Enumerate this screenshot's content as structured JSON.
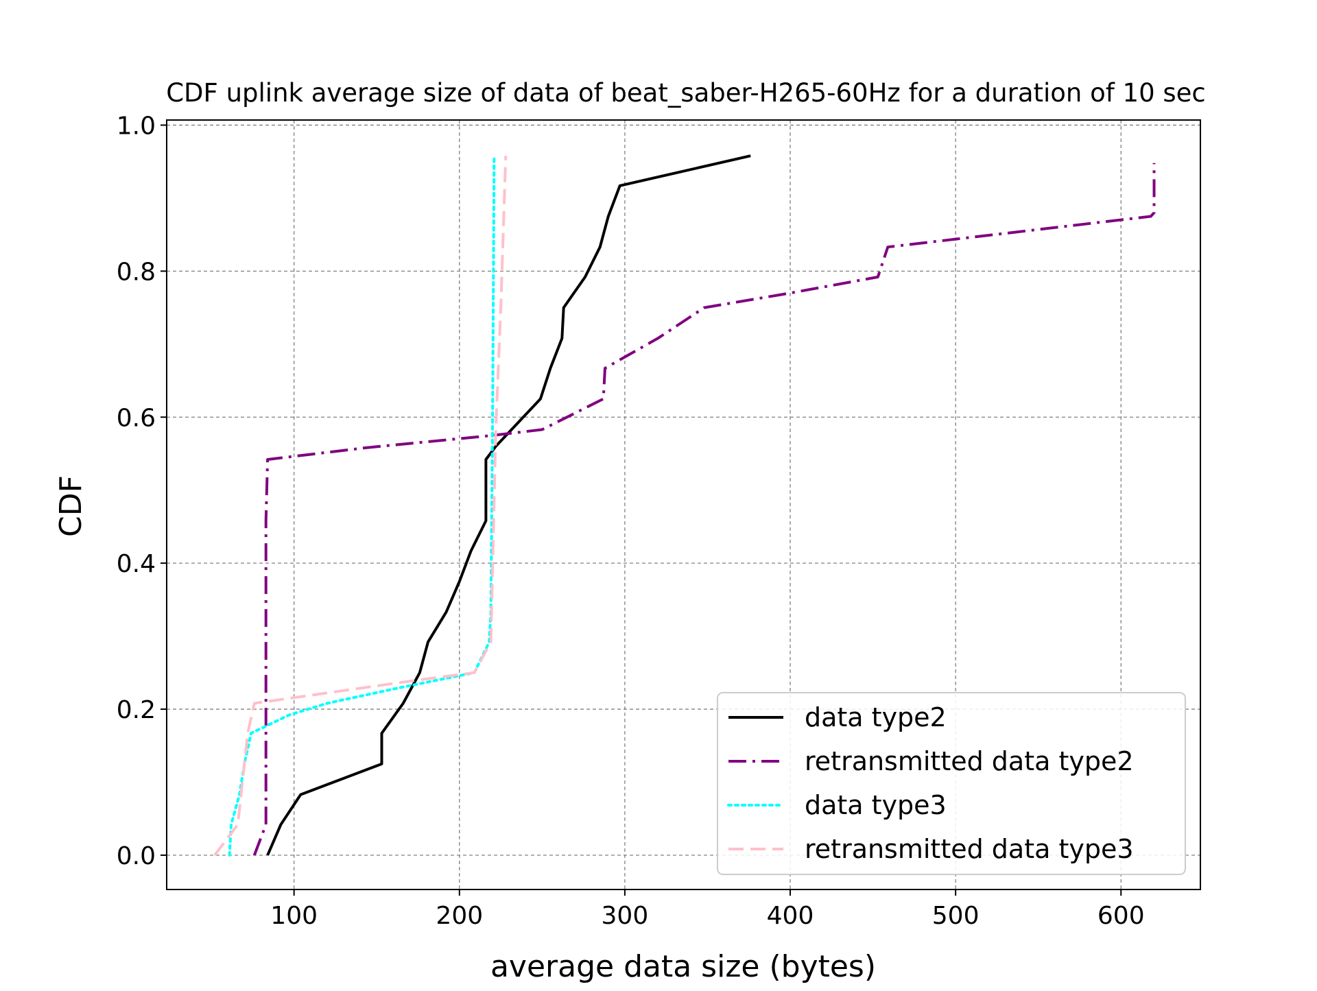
{
  "chart_data": {
    "type": "line",
    "title": "CDF uplink average size of data of beat_saber-H265-60Hz for a duration of 10 sec",
    "xlabel": "average data size (bytes)",
    "ylabel": "CDF",
    "xlim": [
      23,
      648
    ],
    "ylim": [
      -0.047,
      1.007
    ],
    "x_ticks": [
      100,
      200,
      300,
      400,
      500,
      600
    ],
    "y_ticks": [
      0.0,
      0.2,
      0.4,
      0.6,
      0.8,
      1.0
    ],
    "x_tick_labels": [
      "100",
      "200",
      "300",
      "400",
      "500",
      "600"
    ],
    "y_tick_labels": [
      "0.0",
      "0.2",
      "0.4",
      "0.6",
      "0.8",
      "1.0"
    ],
    "grid": true,
    "legend_position": "lower-right",
    "series": [
      {
        "name": "data type2",
        "color": "#000000",
        "style": "solid",
        "points": [
          [
            84,
            0.0
          ],
          [
            92,
            0.042
          ],
          [
            104,
            0.083
          ],
          [
            153,
            0.125
          ],
          [
            153,
            0.167
          ],
          [
            166,
            0.208
          ],
          [
            176,
            0.25
          ],
          [
            181,
            0.292
          ],
          [
            192,
            0.333
          ],
          [
            200,
            0.375
          ],
          [
            207,
            0.417
          ],
          [
            216,
            0.458
          ],
          [
            216,
            0.542
          ],
          [
            222,
            0.56
          ],
          [
            249,
            0.625
          ],
          [
            255,
            0.667
          ],
          [
            262,
            0.708
          ],
          [
            263,
            0.75
          ],
          [
            276,
            0.792
          ],
          [
            285,
            0.833
          ],
          [
            290,
            0.875
          ],
          [
            297,
            0.917
          ],
          [
            376,
            0.958
          ]
        ]
      },
      {
        "name": "retransmitted data type2",
        "color": "#800080",
        "style": "dashdot",
        "points": [
          [
            76,
            0.0
          ],
          [
            83,
            0.042
          ],
          [
            83,
            0.458
          ],
          [
            84,
            0.542
          ],
          [
            143,
            0.558
          ],
          [
            220,
            0.575
          ],
          [
            250,
            0.583
          ],
          [
            265,
            0.6
          ],
          [
            287,
            0.625
          ],
          [
            288,
            0.667
          ],
          [
            320,
            0.708
          ],
          [
            348,
            0.75
          ],
          [
            400,
            0.77
          ],
          [
            453,
            0.792
          ],
          [
            459,
            0.833
          ],
          [
            618,
            0.875
          ],
          [
            620,
            0.88
          ],
          [
            620,
            0.948
          ]
        ]
      },
      {
        "name": "data type3",
        "color": "#00ffff",
        "style": "dotted",
        "points": [
          [
            61,
            0.0
          ],
          [
            62,
            0.042
          ],
          [
            67,
            0.083
          ],
          [
            70,
            0.125
          ],
          [
            74,
            0.167
          ],
          [
            97,
            0.192
          ],
          [
            120,
            0.208
          ],
          [
            163,
            0.229
          ],
          [
            209,
            0.25
          ],
          [
            218,
            0.292
          ],
          [
            219,
            0.333
          ],
          [
            220,
            0.583
          ],
          [
            221,
            0.958
          ]
        ]
      },
      {
        "name": "retransmitted data type3",
        "color": "#ffc0cb",
        "style": "dashed",
        "points": [
          [
            52,
            0.0
          ],
          [
            66,
            0.042
          ],
          [
            72,
            0.167
          ],
          [
            76,
            0.208
          ],
          [
            175,
            0.24
          ],
          [
            209,
            0.25
          ],
          [
            219,
            0.292
          ],
          [
            222,
            0.583
          ],
          [
            225,
            0.75
          ],
          [
            228,
            0.958
          ]
        ]
      }
    ]
  }
}
